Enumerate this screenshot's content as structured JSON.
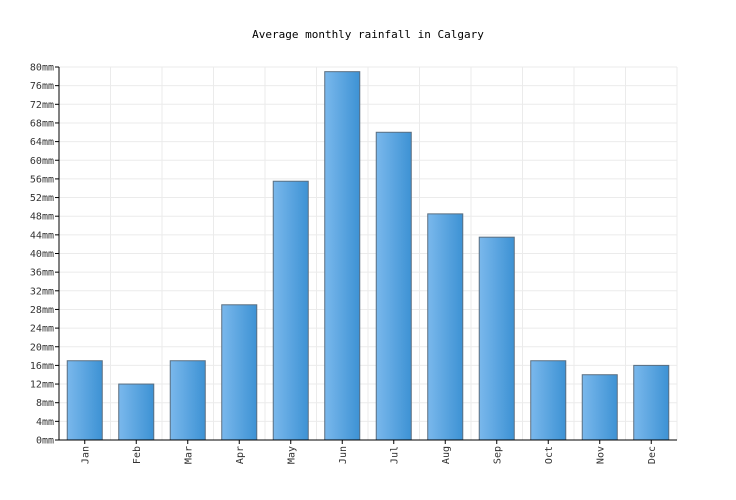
{
  "chart_data": {
    "type": "bar",
    "title": "Average monthly rainfall in Calgary",
    "xlabel": "",
    "ylabel": "",
    "categories": [
      "Jan",
      "Feb",
      "Mar",
      "Apr",
      "May",
      "Jun",
      "Jul",
      "Aug",
      "Sep",
      "Oct",
      "Nov",
      "Dec"
    ],
    "values": [
      17,
      12,
      17,
      29,
      55.5,
      79,
      66,
      48.5,
      43.5,
      17,
      14,
      16
    ],
    "ylim": [
      0,
      80
    ],
    "ytick_step": 4,
    "y_unit": "mm",
    "grid": true,
    "bar_color_light": "#7ab8ec",
    "bar_color_dark": "#3d92d4",
    "bar_border": "#5a6e80"
  }
}
